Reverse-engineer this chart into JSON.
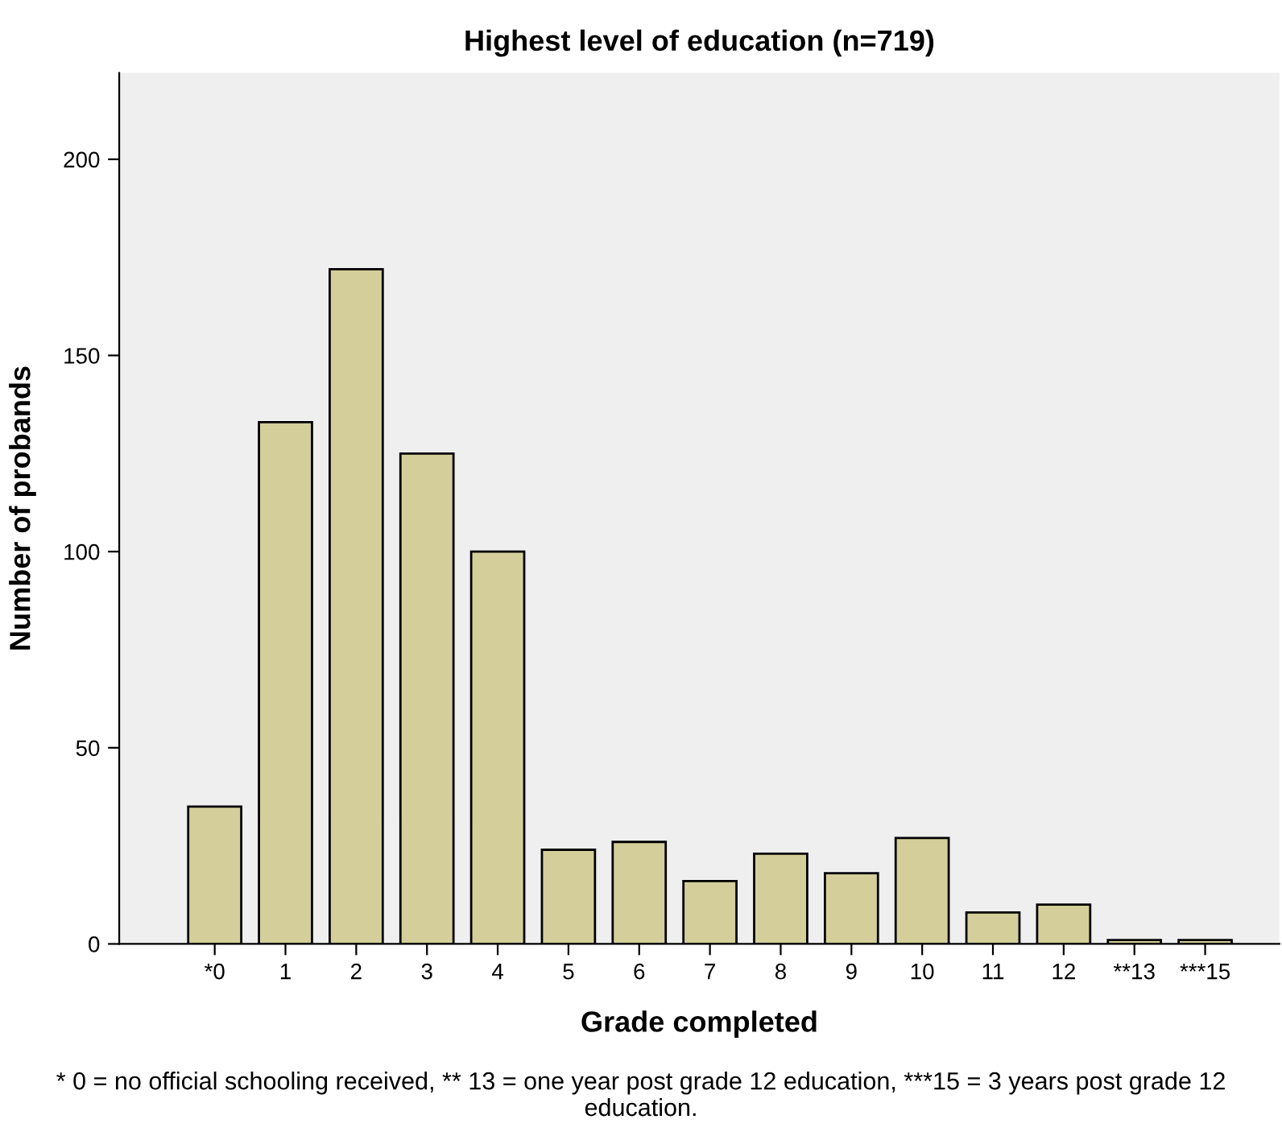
{
  "chart_data": {
    "type": "bar",
    "title": "Highest level of education (n=719)",
    "xlabel": "Grade completed",
    "ylabel": "Number of probands",
    "categories": [
      "*0",
      "1",
      "2",
      "3",
      "4",
      "5",
      "6",
      "7",
      "8",
      "9",
      "10",
      "11",
      "12",
      "**13",
      "***15"
    ],
    "values": [
      35,
      133,
      172,
      125,
      100,
      24,
      26,
      16,
      23,
      18,
      27,
      8,
      10,
      1,
      1
    ],
    "color": "#d4cf9a",
    "ylim": [
      0,
      222
    ],
    "yticks": [
      0,
      50,
      100,
      150,
      200
    ],
    "grid": false,
    "legend": false,
    "annotations": [
      "* 0 = no official schooling received, ** 13 = one year post grade 12 education, ***15 = 3 years post grade 12 education."
    ]
  }
}
